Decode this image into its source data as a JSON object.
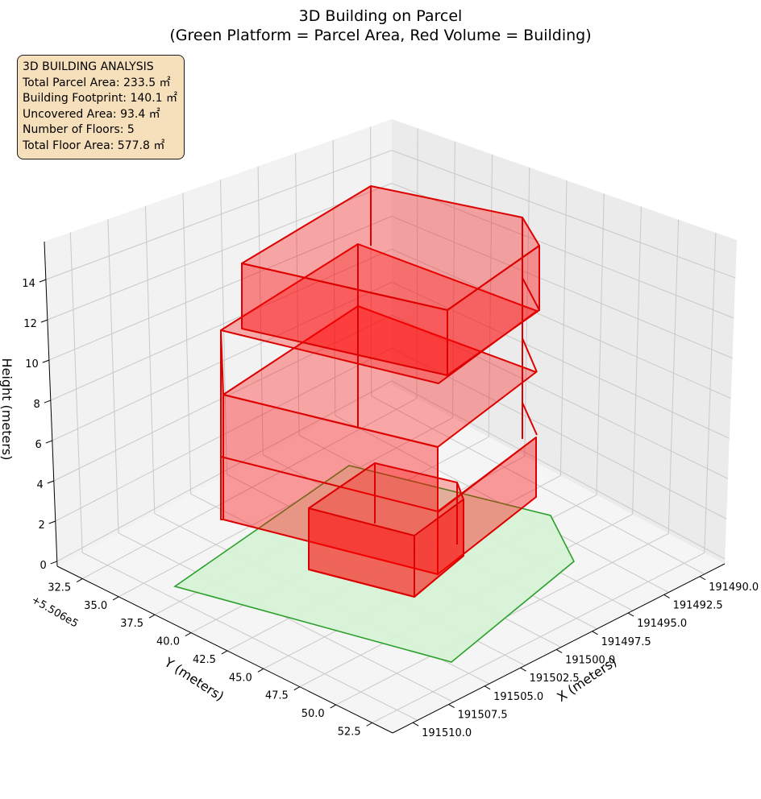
{
  "chart_data": {
    "type": "3d-polygon",
    "title": "3D Building on Parcel",
    "subtitle": "(Green Platform = Parcel Area, Red Volume = Building)",
    "xlabel": "X (meters)",
    "ylabel": "Y (meters)",
    "zlabel": "Height (meters)",
    "x_ticks": [
      "191490.0",
      "191492.5",
      "191495.0",
      "191497.5",
      "191500.0",
      "191502.5",
      "191505.0",
      "191507.5",
      "191510.0"
    ],
    "y_ticks": [
      "32.5",
      "35.0",
      "37.5",
      "40.0",
      "42.5",
      "45.0",
      "47.5",
      "50.0",
      "52.5"
    ],
    "y_offset": "+5.506e5",
    "z_ticks": [
      "0",
      "2",
      "4",
      "6",
      "8",
      "10",
      "12",
      "14"
    ],
    "zlim": [
      0,
      15
    ],
    "grid": true,
    "colors": {
      "parcel_face": "#d6f2d6",
      "parcel_edge": "#2ca02c",
      "building_face": "#ff0000",
      "building_edge": "#dd0000"
    },
    "parcel_label": "Green Platform = Parcel Area",
    "building_label": "Red Volume = Building"
  },
  "info": {
    "title": "3D BUILDING ANALYSIS",
    "lines": [
      "Total Parcel Area: 233.5 ㎡",
      "Building Footprint: 140.1 ㎡",
      "Uncovered Area: 93.4 ㎡",
      "Number of Floors: 5",
      "Total Floor Area: 577.8 ㎡"
    ]
  }
}
